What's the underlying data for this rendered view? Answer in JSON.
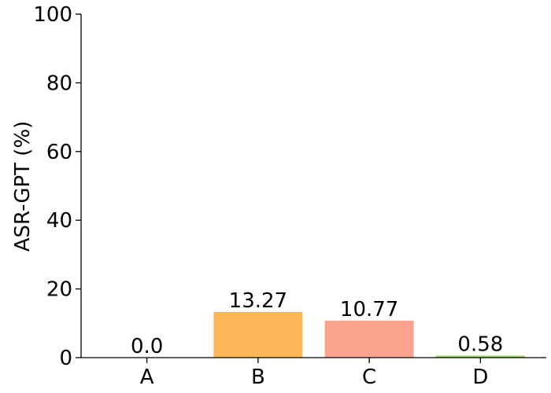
{
  "chart_data": {
    "type": "bar",
    "categories": [
      "A",
      "B",
      "C",
      "D"
    ],
    "values": [
      0.0,
      13.27,
      10.77,
      0.58
    ],
    "value_labels": [
      "0.0",
      "13.27",
      "10.77",
      "0.58"
    ],
    "colors": [
      "#8dd3c7",
      "#fdb85a",
      "#fca38f",
      "#9cd36a"
    ],
    "title": "",
    "xlabel": "",
    "ylabel": "ASR-GPT (%)",
    "ylim": [
      0,
      100
    ],
    "yticks": [
      0,
      20,
      40,
      60,
      80,
      100
    ],
    "grid": false,
    "legend": "none"
  }
}
